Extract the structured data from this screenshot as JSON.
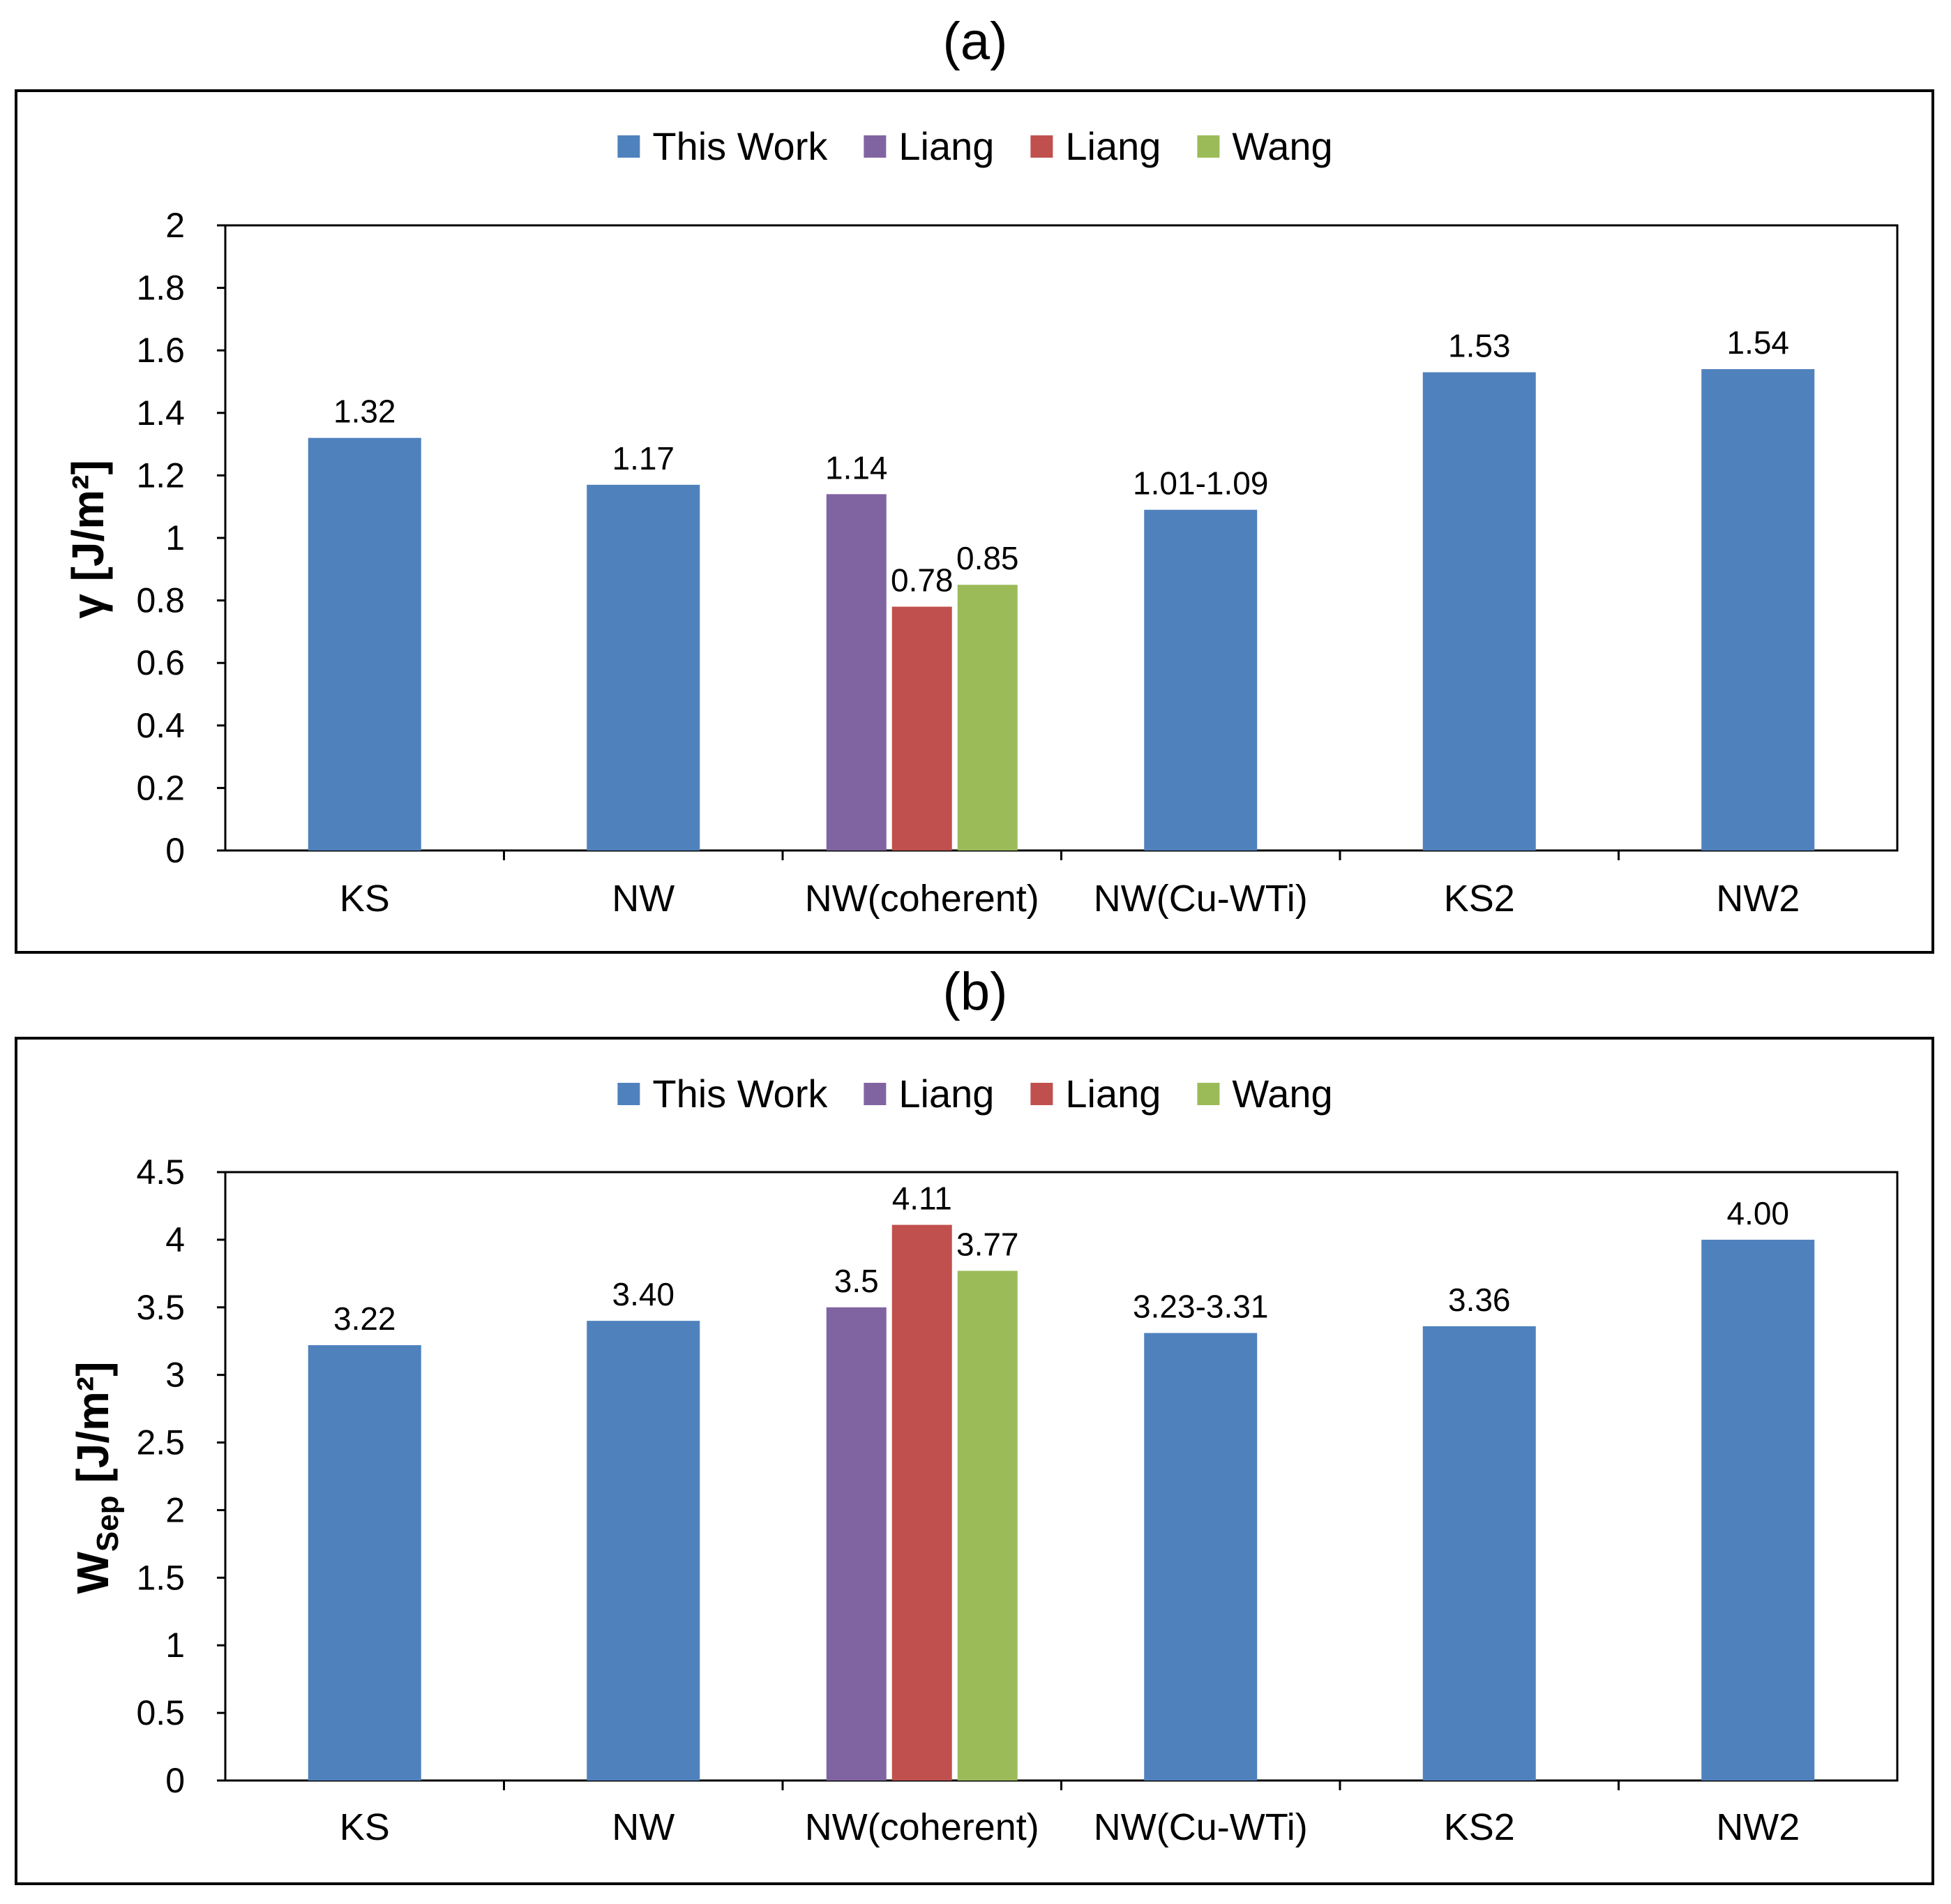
{
  "chart_data": [
    {
      "type": "bar",
      "panel_label": "(a)",
      "ylabel": "γ [J/m²]",
      "ylim": [
        0,
        2
      ],
      "yticks": [
        "0",
        "0.2",
        "0.4",
        "0.6",
        "0.8",
        "1",
        "1.2",
        "1.4",
        "1.6",
        "1.8",
        "2"
      ],
      "categories": [
        "KS",
        "NW",
        "NW(coherent)",
        "NW(Cu-WTi)",
        "KS2",
        "NW2"
      ],
      "legend_position": "top-center",
      "grid": false,
      "series_colors": [
        "#4F81BD",
        "#8064A2",
        "#C0504D",
        "#9BBB59"
      ],
      "series": [
        {
          "name": "This Work",
          "color": "#4F81BD",
          "values": [
            1.32,
            1.17,
            null,
            1.09,
            1.53,
            1.54
          ],
          "labels": [
            "1.32",
            "1.17",
            "",
            "1.01-1.09",
            "1.53",
            "1.54"
          ]
        },
        {
          "name": "Liang",
          "color": "#8064A2",
          "values": [
            null,
            null,
            1.14,
            null,
            null,
            null
          ],
          "labels": [
            "",
            "",
            "1.14",
            "",
            "",
            ""
          ]
        },
        {
          "name": "Liang",
          "color": "#C0504D",
          "values": [
            null,
            null,
            0.78,
            null,
            null,
            null
          ],
          "labels": [
            "",
            "",
            "0.78",
            "",
            "",
            ""
          ]
        },
        {
          "name": "Wang",
          "color": "#9BBB59",
          "values": [
            null,
            null,
            0.85,
            null,
            null,
            null
          ],
          "labels": [
            "",
            "",
            "0.85",
            "",
            "",
            ""
          ]
        }
      ]
    },
    {
      "type": "bar",
      "panel_label": "(b)",
      "ylabel": "W",
      "ylabel_subscript": "Sep",
      "ylabel_unit": " [J/m²]",
      "ylim": [
        0,
        4.5
      ],
      "yticks": [
        "0",
        "0.5",
        "1",
        "1.5",
        "2",
        "2.5",
        "3",
        "3.5",
        "4",
        "4.5"
      ],
      "categories": [
        "KS",
        "NW",
        "NW(coherent)",
        "NW(Cu-WTi)",
        "KS2",
        "NW2"
      ],
      "legend_position": "top-center",
      "grid": false,
      "series_colors": [
        "#4F81BD",
        "#8064A2",
        "#C0504D",
        "#9BBB59"
      ],
      "series": [
        {
          "name": "This Work",
          "color": "#4F81BD",
          "values": [
            3.22,
            3.4,
            null,
            3.31,
            3.36,
            4.0
          ],
          "labels": [
            "3.22",
            "3.40",
            "",
            "3.23-3.31",
            "3.36",
            "4.00"
          ]
        },
        {
          "name": "Liang",
          "color": "#8064A2",
          "values": [
            null,
            null,
            3.5,
            null,
            null,
            null
          ],
          "labels": [
            "",
            "",
            "3.5",
            "",
            "",
            ""
          ]
        },
        {
          "name": "Liang",
          "color": "#C0504D",
          "values": [
            null,
            null,
            4.11,
            null,
            null,
            null
          ],
          "labels": [
            "",
            "",
            "4.11",
            "",
            "",
            ""
          ]
        },
        {
          "name": "Wang",
          "color": "#9BBB59",
          "values": [
            null,
            null,
            3.77,
            null,
            null,
            null
          ],
          "labels": [
            "",
            "",
            "3.77",
            "",
            "",
            ""
          ]
        }
      ]
    }
  ]
}
